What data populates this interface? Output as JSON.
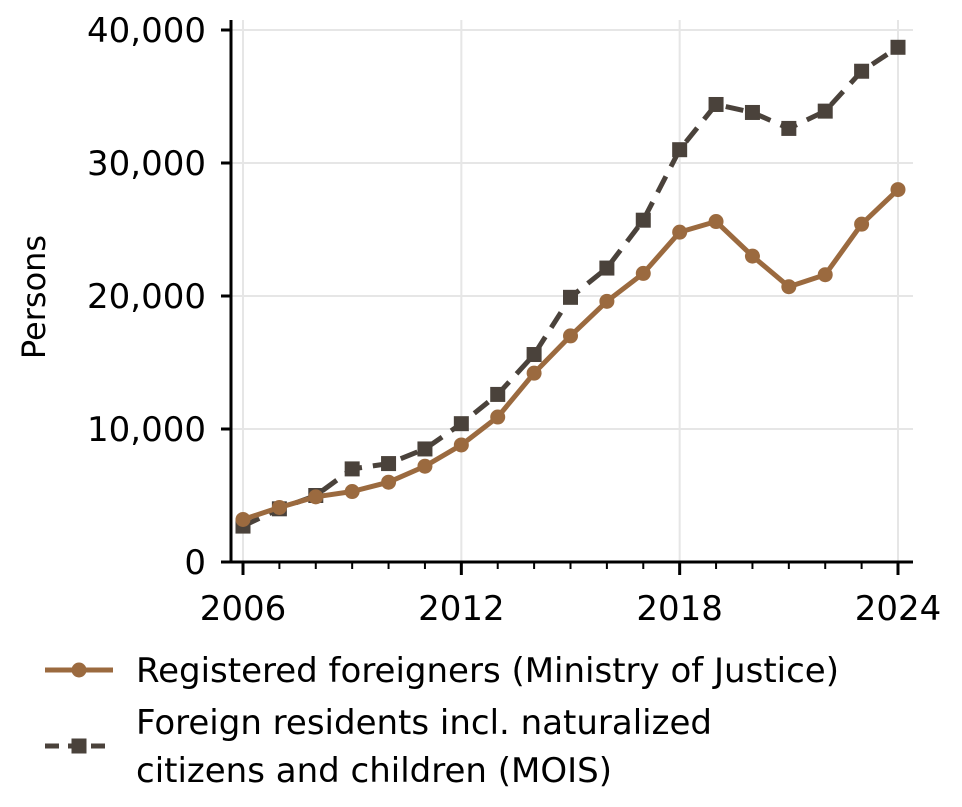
{
  "chart_data": {
    "type": "line",
    "title": "",
    "xlabel": "",
    "ylabel": "Persons",
    "xlim": [
      2006,
      2024
    ],
    "ylim": [
      0,
      40000
    ],
    "x_ticks": [
      2006,
      2012,
      2018,
      2024
    ],
    "x_tick_labels": [
      "2006",
      "2012",
      "2018",
      "2024"
    ],
    "y_ticks": [
      0,
      10000,
      20000,
      30000,
      40000
    ],
    "y_tick_labels": [
      "0",
      "10,000",
      "20,000",
      "30,000",
      "40,000"
    ],
    "grid": true,
    "legend_position": "bottom",
    "x": [
      2006,
      2007,
      2008,
      2009,
      2010,
      2011,
      2012,
      2013,
      2014,
      2015,
      2016,
      2017,
      2018,
      2019,
      2020,
      2021,
      2022,
      2023,
      2024
    ],
    "series": [
      {
        "name": "Registered foreigners (Ministry of Justice)",
        "legend_lines": [
          "Registered foreigners (Ministry of Justice)"
        ],
        "color": "#9b6a3f",
        "marker": "circle",
        "line_style": "solid",
        "values": [
          3200,
          4100,
          4900,
          5300,
          6000,
          7200,
          8800,
          10900,
          14200,
          17000,
          19600,
          21700,
          24800,
          25600,
          23000,
          20700,
          21600,
          25400,
          28000
        ]
      },
      {
        "name": "Foreign residents incl. naturalized citizens and children (MOIS)",
        "legend_lines": [
          "Foreign residents incl. naturalized",
          "citizens and children (MOIS)"
        ],
        "color": "#4a423b",
        "marker": "square",
        "line_style": "dashed",
        "values": [
          2700,
          4000,
          5000,
          7000,
          7400,
          8500,
          10400,
          12600,
          15600,
          19900,
          22100,
          25700,
          31000,
          34400,
          33800,
          32600,
          33900,
          36900,
          38700
        ]
      }
    ]
  }
}
